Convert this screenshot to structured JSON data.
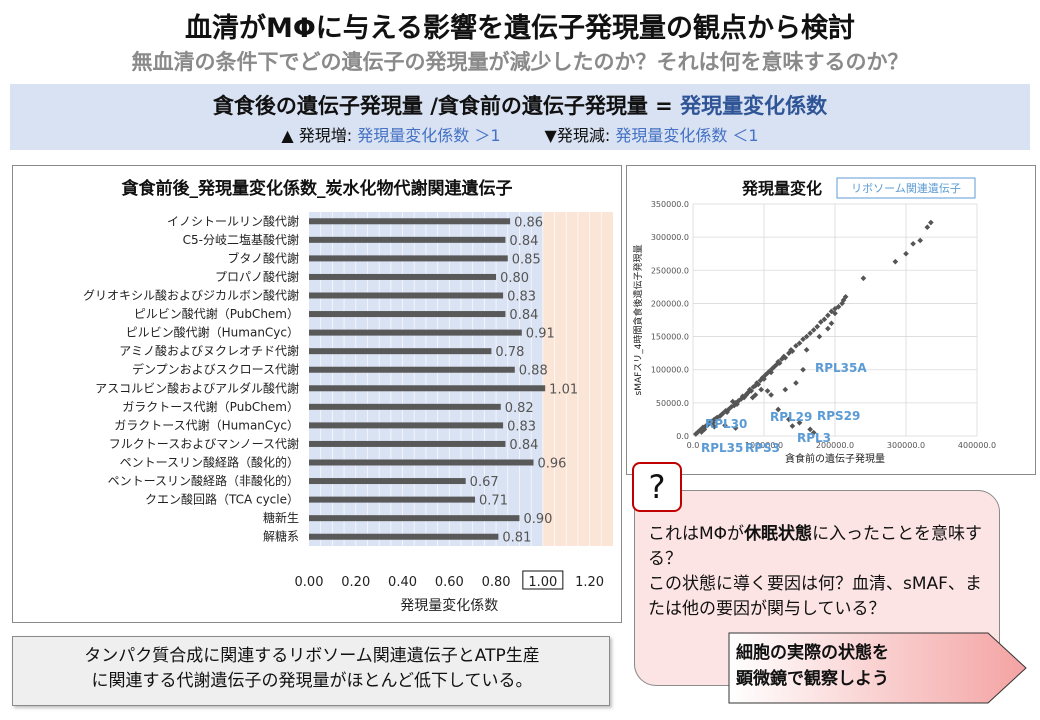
{
  "header": {
    "title": "血清がMΦに与える影響を遺伝子発現量の観点から検討",
    "subtitle": "無血清の条件下でどの遺伝子の発現量が減少したのか？それは何を意味するのか？",
    "formula_left": "貪食後の遺伝子発現量 /貪食前の遺伝子発現量 = ",
    "formula_right": "発現量変化係数",
    "up_label": "▲ 発現増: ",
    "up_value": "発現量変化係数 ＞1",
    "down_label": "▼発現減: ",
    "down_value": "発現量変化係数 ＜1"
  },
  "colors": {
    "band": "#d9e2f3",
    "bar": "#595959",
    "blue_bg": "#dae3f3",
    "orange_bg": "#fbe5d6",
    "accent": "#2f5597",
    "scatter_label": "#5b9bd5",
    "bubble": "#fce4e4",
    "arrow": "#f4b6b6"
  },
  "chart_data": [
    {
      "type": "bar",
      "orientation": "horizontal",
      "title": "貪食前後_発現量変化係数_炭水化物代謝関連遺伝子",
      "xlabel": "発現量変化係数",
      "xlim": [
        0,
        1.3
      ],
      "xticks": [
        "0.00",
        "0.20",
        "0.40",
        "0.60",
        "0.80",
        "1.00",
        "1.20"
      ],
      "highlight_tick": "1.00",
      "categories": [
        "イノシトールリン酸代謝",
        "C5-分岐二塩基酸代謝",
        "ブタノ酸代謝",
        "プロパノ酸代謝",
        "グリオキシル酸およびジカルボン酸代謝",
        "ピルビン酸代謝（PubChem）",
        "ピルビン酸代謝（HumanCyc）",
        "アミノ酸およびヌクレオチド代謝",
        "デンプンおよびスクロース代謝",
        "アスコルビン酸およびアルダル酸代謝",
        "ガラクトース代謝（PubChem）",
        "ガラクトース代謝（HumanCyc）",
        "フルクトースおよびマンノース代謝",
        "ペントースリン酸経路（酸化的）",
        "ペントースリン酸経路（非酸化的）",
        "クエン酸回路（TCA cycle）",
        "糖新生",
        "解糖系"
      ],
      "values": [
        0.86,
        0.84,
        0.85,
        0.8,
        0.83,
        0.84,
        0.91,
        0.78,
        0.88,
        1.01,
        0.82,
        0.83,
        0.84,
        0.96,
        0.67,
        0.71,
        0.9,
        0.81
      ],
      "value_labels": [
        "0.86",
        "0.84",
        "0.85",
        "0.80",
        "0.83",
        "0.84",
        "0.91",
        "0.78",
        "0.88",
        "1.01",
        "0.82",
        "0.83",
        "0.84",
        "0.96",
        "0.67",
        "0.71",
        "0.90",
        "0.81"
      ]
    },
    {
      "type": "scatter",
      "title": "発現量変化",
      "legend": "リボソーム関連遺伝子",
      "xlabel": "貪食前の遺伝子発現量",
      "ylabel": "sMAFスリ_4時間貪食後遺伝子発現量",
      "xlim": [
        0,
        400000
      ],
      "ylim": [
        0,
        350000
      ],
      "xticks": [
        "0.0",
        "100000.0",
        "200000.0",
        "300000.0",
        "400000.0"
      ],
      "yticks": [
        "0.0",
        "50000.0",
        "100000.0",
        "150000.0",
        "200000.0",
        "250000.0",
        "300000.0",
        "350000.0"
      ],
      "points": [
        [
          4000,
          3000
        ],
        [
          7000,
          6000
        ],
        [
          10000,
          9000
        ],
        [
          14000,
          13000
        ],
        [
          18000,
          15000
        ],
        [
          22000,
          18000
        ],
        [
          26000,
          22000
        ],
        [
          30000,
          25000
        ],
        [
          34000,
          28000
        ],
        [
          38000,
          30000
        ],
        [
          42000,
          34000
        ],
        [
          46000,
          38000
        ],
        [
          50000,
          40000
        ],
        [
          54000,
          44000
        ],
        [
          58000,
          46000
        ],
        [
          60000,
          50000
        ],
        [
          64000,
          53000
        ],
        [
          68000,
          56000
        ],
        [
          70000,
          60000
        ],
        [
          72000,
          58000
        ],
        [
          75000,
          62000
        ],
        [
          78000,
          66000
        ],
        [
          80000,
          70000
        ],
        [
          82000,
          68000
        ],
        [
          85000,
          74000
        ],
        [
          88000,
          76000
        ],
        [
          90000,
          80000
        ],
        [
          92000,
          78000
        ],
        [
          95000,
          84000
        ],
        [
          98000,
          88000
        ],
        [
          100000,
          86000
        ],
        [
          102000,
          92000
        ],
        [
          105000,
          95000
        ],
        [
          108000,
          98000
        ],
        [
          110000,
          96000
        ],
        [
          112000,
          102000
        ],
        [
          115000,
          105000
        ],
        [
          118000,
          108000
        ],
        [
          120000,
          112000
        ],
        [
          122000,
          110000
        ],
        [
          125000,
          116000
        ],
        [
          128000,
          120000
        ],
        [
          130000,
          118000
        ],
        [
          135000,
          125000
        ],
        [
          138000,
          130000
        ],
        [
          140000,
          128000
        ],
        [
          145000,
          136000
        ],
        [
          150000,
          140000
        ],
        [
          155000,
          146000
        ],
        [
          160000,
          150000
        ],
        [
          165000,
          155000
        ],
        [
          170000,
          160000
        ],
        [
          175000,
          165000
        ],
        [
          180000,
          172000
        ],
        [
          185000,
          176000
        ],
        [
          190000,
          182000
        ],
        [
          195000,
          188000
        ],
        [
          200000,
          192000
        ],
        [
          205000,
          195000
        ],
        [
          210000,
          200000
        ],
        [
          178000,
          150000
        ],
        [
          240000,
          238000
        ],
        [
          300000,
          275000
        ],
        [
          310000,
          290000
        ],
        [
          320000,
          295000
        ],
        [
          330000,
          315000
        ],
        [
          335000,
          322000
        ],
        [
          285000,
          263000
        ],
        [
          96000,
          70000
        ],
        [
          88000,
          62000
        ],
        [
          76000,
          64000
        ],
        [
          84000,
          58000
        ],
        [
          62000,
          48000
        ],
        [
          56000,
          52000
        ],
        [
          48000,
          36000
        ],
        [
          40000,
          32000
        ],
        [
          32000,
          26000
        ],
        [
          28000,
          20000
        ],
        [
          20000,
          16000
        ],
        [
          16000,
          10000
        ],
        [
          12000,
          6000
        ],
        [
          30000,
          14000
        ],
        [
          45000,
          16000
        ],
        [
          60000,
          12000
        ],
        [
          140000,
          15000
        ],
        [
          135000,
          25000
        ],
        [
          150000,
          20000
        ],
        [
          165000,
          10000
        ],
        [
          170000,
          5000
        ],
        [
          120000,
          40000
        ],
        [
          110000,
          62000
        ],
        [
          105000,
          68000
        ],
        [
          130000,
          70000
        ],
        [
          145000,
          80000
        ],
        [
          155000,
          100000
        ],
        [
          160000,
          130000
        ],
        [
          190000,
          162000
        ],
        [
          195000,
          170000
        ],
        [
          200000,
          185000
        ],
        [
          212000,
          205000
        ],
        [
          215000,
          210000
        ]
      ],
      "annotations": [
        "RPL35A",
        "RPL29",
        "RPS29",
        "RPL3",
        "RPL30",
        "RPL35",
        "RPS3"
      ]
    }
  ],
  "bottom_note": {
    "line1": "タンパク質合成に関連するリボソーム関連遺伝子とATP生産",
    "line2": "に関連する代謝遺伝子の発現量がほとんど低下している。"
  },
  "question": {
    "mark": "?",
    "text_pre": "これはMΦが",
    "text_bold": "休眠状態",
    "text_post": "に入ったことを意味する？",
    "line2": "この状態に導く要因は何？血清、sMAF、または他の要因が関与している？"
  },
  "observe": {
    "line1": "細胞の実際の状態を",
    "line2": "顕微鏡で観察しよう"
  }
}
